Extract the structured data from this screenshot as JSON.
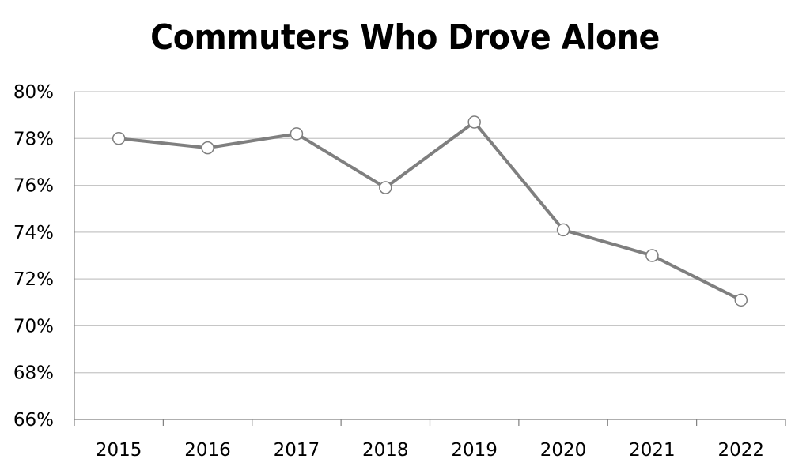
{
  "chart_data": {
    "type": "line",
    "title": "Commuters Who Drove Alone",
    "xlabel": "",
    "ylabel": "",
    "categories": [
      "2015",
      "2016",
      "2017",
      "2018",
      "2019",
      "2020",
      "2021",
      "2022"
    ],
    "series": [
      {
        "values": [
          78.0,
          77.6,
          78.2,
          75.9,
          78.7,
          74.1,
          73.0,
          71.1
        ]
      }
    ],
    "ylim": [
      66,
      80
    ],
    "yticks": [
      66,
      68,
      70,
      72,
      74,
      76,
      78,
      80
    ],
    "ytick_labels": [
      "66%",
      "68%",
      "70%",
      "72%",
      "74%",
      "76%",
      "78%",
      "80%"
    ],
    "grid": true,
    "legend": "none",
    "colors": {
      "line": "#7f7f7f",
      "marker_fill": "#ffffff",
      "marker_stroke": "#7f7f7f",
      "grid": "#c6c6c6",
      "axis": "#7f7f7f"
    }
  }
}
